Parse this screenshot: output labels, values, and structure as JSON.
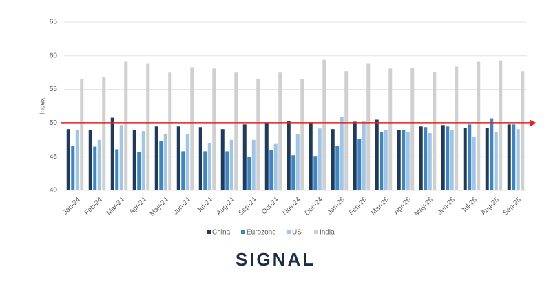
{
  "chart_data": {
    "type": "bar",
    "y_label": "Index",
    "categories": [
      "Jan-24",
      "Feb-24",
      "Mar-24",
      "Apr-24",
      "May-24",
      "Jun-24",
      "Jul-24",
      "Aug-24",
      "Sep-24",
      "Oct-24",
      "Nov-24",
      "Dec-24",
      "Jan-25",
      "Feb-25",
      "Mar-25",
      "Apr-25",
      "May-25",
      "Jun-25",
      "Jul-25",
      "Aug-25",
      "Sep-25"
    ],
    "series": [
      {
        "name": "China",
        "color": "#1f3a5f",
        "values": [
          49.1,
          49.0,
          50.8,
          49.0,
          49.5,
          49.5,
          49.4,
          49.1,
          49.8,
          50.1,
          50.3,
          50.1,
          49.1,
          50.2,
          50.5,
          49.0,
          49.5,
          49.7,
          49.3,
          49.3,
          49.8
        ]
      },
      {
        "name": "Eurozone",
        "color": "#3d85c6",
        "values": [
          46.6,
          46.5,
          46.1,
          45.7,
          47.3,
          45.8,
          45.8,
          45.8,
          45.0,
          46.0,
          45.2,
          45.1,
          46.6,
          47.6,
          48.6,
          49.0,
          49.4,
          49.5,
          49.8,
          50.7,
          49.8
        ]
      },
      {
        "name": "US",
        "color": "#9fc5e8",
        "values": [
          49.0,
          47.5,
          49.7,
          48.8,
          48.4,
          48.3,
          47.0,
          47.5,
          47.5,
          46.9,
          48.4,
          49.2,
          50.9,
          50.3,
          49.0,
          48.7,
          48.5,
          49.0,
          48.0,
          48.7,
          49.1
        ]
      },
      {
        "name": "India",
        "color": "#d0d0d0",
        "values": [
          56.5,
          56.9,
          59.1,
          58.8,
          57.5,
          58.3,
          58.1,
          57.5,
          56.5,
          57.5,
          56.5,
          59.4,
          57.7,
          58.8,
          58.1,
          58.2,
          57.6,
          58.4,
          59.1,
          59.3,
          57.7
        ]
      }
    ],
    "ylim": [
      40,
      65
    ],
    "yticks": [
      40,
      45,
      50,
      55,
      60,
      65
    ],
    "grid": true,
    "reference_line": {
      "value": 50,
      "color": "#e8201f"
    },
    "legend": "bottom",
    "logo": "SIGNAL"
  }
}
